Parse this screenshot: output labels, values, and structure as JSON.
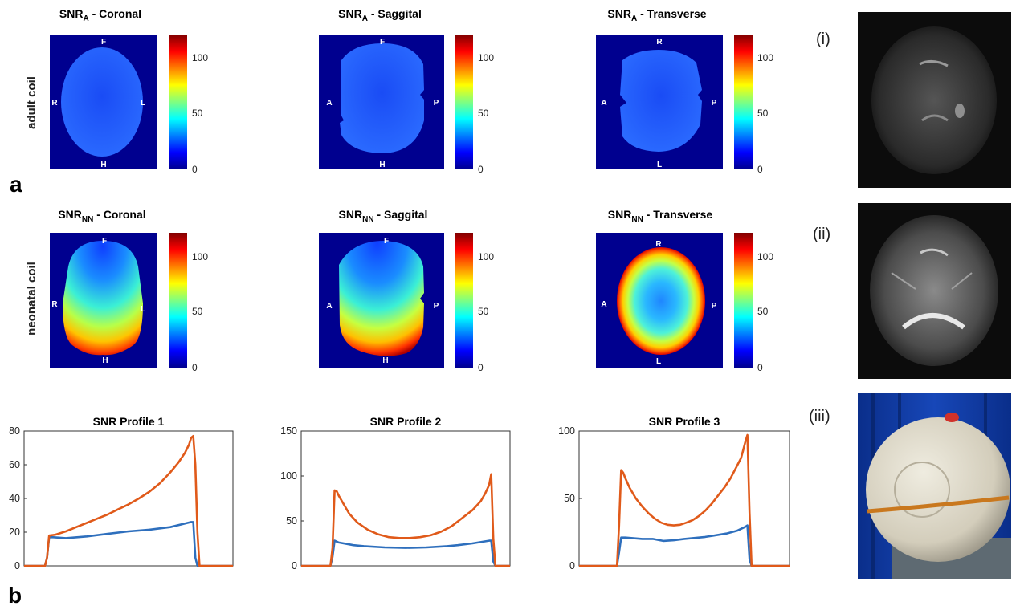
{
  "figure": {
    "panel_a": "a",
    "panel_b": "b",
    "row_labels": [
      "adult coil",
      "neonatal coil"
    ],
    "map_titles": [
      {
        "main": "SNR",
        "sub": "A",
        "rest": " - Coronal"
      },
      {
        "main": "SNR",
        "sub": "A",
        "rest": " - Saggital"
      },
      {
        "main": "SNR",
        "sub": "A",
        "rest": " - Transverse"
      },
      {
        "main": "SNR",
        "sub": "NN",
        "rest": " - Coronal"
      },
      {
        "main": "SNR",
        "sub": "NN",
        "rest": " - Saggital"
      },
      {
        "main": "SNR",
        "sub": "NN",
        "rest": " - Transverse"
      }
    ],
    "orientation_labels": [
      {
        "top": "F",
        "bottom": "H",
        "left": "R",
        "right": "L"
      },
      {
        "top": "F",
        "bottom": "H",
        "left": "A",
        "right": "P"
      },
      {
        "top": "R",
        "bottom": "L",
        "left": "A",
        "right": "P"
      }
    ],
    "colorbar_ticks": [
      "100",
      "50",
      "0"
    ],
    "image_labels": [
      "(i)",
      "(ii)",
      "(iii)"
    ]
  },
  "colors": {
    "map_background": "#00008f",
    "series_adult": "#2e6fbd",
    "series_neonatal": "#e05a1a"
  },
  "chart_data": [
    {
      "type": "line",
      "title": "SNR Profile 1",
      "ylim": [
        0,
        80
      ],
      "yticks": [
        0,
        20,
        40,
        60,
        80
      ],
      "xlim": [
        0,
        100
      ],
      "series": [
        {
          "x": [
            0,
            10,
            11,
            12,
            14,
            20,
            30,
            40,
            50,
            60,
            70,
            80,
            81,
            82,
            83,
            84,
            86,
            100
          ],
          "values": [
            0,
            0,
            5,
            17,
            17,
            16.5,
            17.5,
            19,
            20.5,
            21.5,
            23,
            26,
            26,
            5,
            0,
            0,
            0,
            0
          ]
        },
        {
          "x": [
            0,
            10,
            11,
            12,
            15,
            20,
            25,
            30,
            35,
            40,
            45,
            50,
            55,
            60,
            65,
            70,
            74,
            77,
            79,
            80,
            81,
            82,
            83,
            84,
            86,
            100
          ],
          "values": [
            0,
            0,
            5,
            18,
            18.5,
            20.5,
            23,
            25.5,
            28,
            30.5,
            33.5,
            36.5,
            40,
            44,
            49,
            55.5,
            61.5,
            67,
            72,
            76,
            77,
            60,
            20,
            0,
            0,
            0
          ]
        }
      ]
    },
    {
      "type": "line",
      "title": "SNR Profile 2",
      "ylim": [
        0,
        150
      ],
      "yticks": [
        0,
        50,
        100,
        150
      ],
      "xlim": [
        0,
        100
      ],
      "series": [
        {
          "x": [
            0,
            14,
            15,
            16,
            18,
            25,
            30,
            40,
            50,
            60,
            70,
            75,
            82,
            90,
            91,
            92,
            93,
            100
          ],
          "values": [
            0,
            0,
            10,
            28,
            26,
            23,
            22,
            20.5,
            20,
            20.5,
            22,
            23,
            25,
            28,
            28,
            5,
            0,
            0
          ]
        },
        {
          "x": [
            0,
            14,
            15,
            16,
            17,
            18,
            20,
            23,
            27,
            32,
            37,
            42,
            47,
            52,
            57,
            62,
            67,
            72,
            77,
            82,
            86,
            88,
            89,
            90,
            91,
            92,
            93,
            100
          ],
          "values": [
            0,
            0,
            20,
            84,
            83,
            78,
            70,
            58,
            48,
            40,
            35,
            32,
            31,
            31,
            32,
            34,
            38,
            44,
            53,
            62,
            72,
            80,
            85,
            90,
            102,
            30,
            0,
            0
          ]
        }
      ]
    },
    {
      "type": "line",
      "title": "SNR Profile 3",
      "ylim": [
        0,
        100
      ],
      "yticks": [
        0,
        50,
        100
      ],
      "xlim": [
        0,
        100
      ],
      "series": [
        {
          "x": [
            0,
            18,
            19,
            20,
            22,
            30,
            35,
            40,
            45,
            50,
            60,
            70,
            75,
            79,
            80,
            81,
            82,
            100
          ],
          "values": [
            0,
            0,
            10,
            21,
            21,
            20,
            20,
            18.5,
            19,
            20,
            21.5,
            24,
            26,
            29,
            30,
            5,
            0,
            0
          ]
        },
        {
          "x": [
            0,
            18,
            19,
            20,
            21,
            22,
            24,
            27,
            30,
            33,
            36,
            39,
            42,
            45,
            48,
            51,
            54,
            57,
            60,
            63,
            66,
            69,
            72,
            75,
            77,
            78,
            79,
            80,
            81,
            82,
            100
          ],
          "values": [
            0,
            0,
            30,
            71,
            69,
            65,
            58,
            50,
            44,
            39,
            35,
            32,
            30.5,
            30,
            30.5,
            32,
            34,
            37,
            41,
            46,
            52,
            58,
            65,
            74,
            80,
            86,
            92,
            97,
            40,
            0,
            0
          ]
        }
      ]
    }
  ]
}
